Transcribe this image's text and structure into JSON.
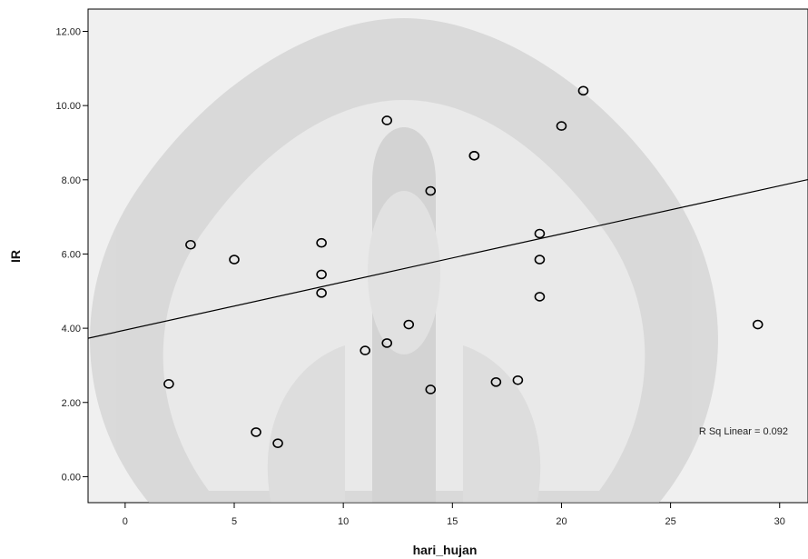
{
  "chart_data": {
    "type": "scatter",
    "xlabel": "hari_hujan",
    "ylabel": "IR",
    "xlim": [
      -1.7,
      31.3
    ],
    "ylim": [
      -0.7,
      12.6
    ],
    "xticks": [
      0,
      5,
      10,
      15,
      20,
      25,
      30
    ],
    "yticks": [
      "0.00",
      "2.00",
      "4.00",
      "6.00",
      "8.00",
      "10.00",
      "12.00"
    ],
    "yticks_values": [
      0,
      2,
      4,
      6,
      8,
      10,
      12
    ],
    "points": [
      {
        "x": 2,
        "y": 2.5
      },
      {
        "x": 3,
        "y": 6.25
      },
      {
        "x": 5,
        "y": 5.85
      },
      {
        "x": 6,
        "y": 1.2
      },
      {
        "x": 7,
        "y": 0.9
      },
      {
        "x": 9,
        "y": 6.3
      },
      {
        "x": 9,
        "y": 5.45
      },
      {
        "x": 9,
        "y": 4.95
      },
      {
        "x": 11,
        "y": 3.4
      },
      {
        "x": 12,
        "y": 9.6
      },
      {
        "x": 12,
        "y": 3.6
      },
      {
        "x": 13,
        "y": 4.1
      },
      {
        "x": 14,
        "y": 7.7
      },
      {
        "x": 14,
        "y": 2.35
      },
      {
        "x": 16,
        "y": 8.65
      },
      {
        "x": 16,
        "y": 8.65
      },
      {
        "x": 17,
        "y": 2.55
      },
      {
        "x": 18,
        "y": 2.6
      },
      {
        "x": 19,
        "y": 6.55
      },
      {
        "x": 19,
        "y": 5.85
      },
      {
        "x": 19,
        "y": 4.85
      },
      {
        "x": 20,
        "y": 9.45
      },
      {
        "x": 21,
        "y": 10.4
      },
      {
        "x": 29,
        "y": 4.1
      }
    ],
    "fit_line": {
      "intercept": 3.95,
      "slope": 0.1296
    },
    "annotation": "R Sq Linear = 0.092",
    "grid": false
  }
}
